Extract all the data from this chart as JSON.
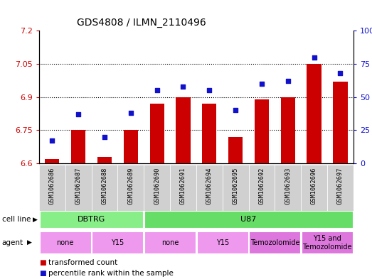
{
  "title": "GDS4808 / ILMN_2110496",
  "samples": [
    "GSM1062686",
    "GSM1062687",
    "GSM1062688",
    "GSM1062689",
    "GSM1062690",
    "GSM1062691",
    "GSM1062694",
    "GSM1062695",
    "GSM1062692",
    "GSM1062693",
    "GSM1062696",
    "GSM1062697"
  ],
  "transformed_count": [
    6.62,
    6.75,
    6.63,
    6.75,
    6.87,
    6.9,
    6.87,
    6.72,
    6.89,
    6.9,
    7.05,
    6.97
  ],
  "percentile_rank": [
    17,
    37,
    20,
    38,
    55,
    58,
    55,
    40,
    60,
    62,
    80,
    68
  ],
  "ylim_left": [
    6.6,
    7.2
  ],
  "ylim_right": [
    0,
    100
  ],
  "yticks_left": [
    6.6,
    6.75,
    6.9,
    7.05,
    7.2
  ],
  "yticks_right": [
    0,
    25,
    50,
    75,
    100
  ],
  "ytick_labels_left": [
    "6.6",
    "6.75",
    "6.9",
    "7.05",
    "7.2"
  ],
  "ytick_labels_right": [
    "0",
    "25",
    "50",
    "75",
    "100%"
  ],
  "hlines": [
    6.75,
    6.9,
    7.05
  ],
  "bar_color": "#cc0000",
  "dot_color": "#1111cc",
  "sample_bg_color": "#d0d0d0",
  "cell_line_groups": [
    {
      "label": "DBTRG",
      "start": 0,
      "end": 3,
      "color": "#88ee88"
    },
    {
      "label": "U87",
      "start": 4,
      "end": 11,
      "color": "#66dd66"
    }
  ],
  "agent_groups": [
    {
      "label": "none",
      "start": 0,
      "end": 1,
      "color": "#ee99ee"
    },
    {
      "label": "Y15",
      "start": 2,
      "end": 3,
      "color": "#ee99ee"
    },
    {
      "label": "none",
      "start": 4,
      "end": 5,
      "color": "#ee99ee"
    },
    {
      "label": "Y15",
      "start": 6,
      "end": 7,
      "color": "#ee99ee"
    },
    {
      "label": "Temozolomide",
      "start": 8,
      "end": 9,
      "color": "#dd77dd"
    },
    {
      "label": "Y15 and\nTemozolomide",
      "start": 10,
      "end": 11,
      "color": "#dd77dd"
    }
  ],
  "legend_items": [
    {
      "label": "transformed count",
      "color": "#cc0000"
    },
    {
      "label": "percentile rank within the sample",
      "color": "#1111cc"
    }
  ]
}
